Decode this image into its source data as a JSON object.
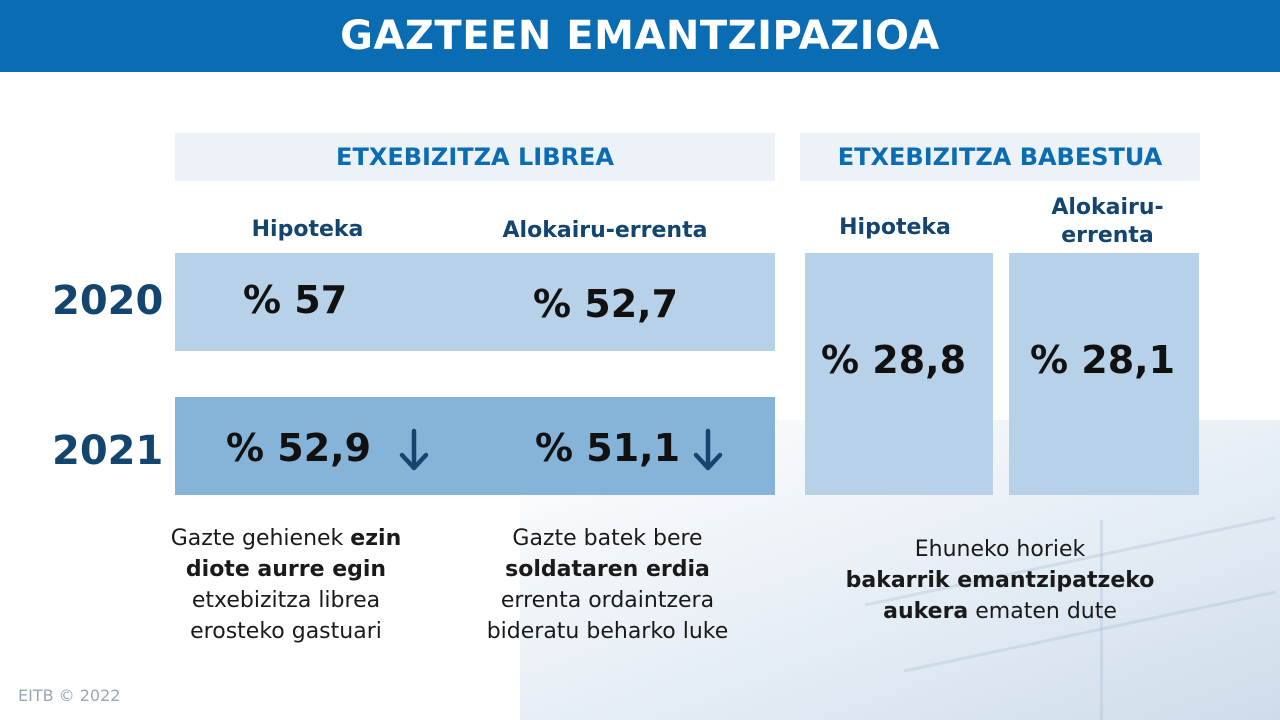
{
  "title": "GAZTEEN EMANTZIPAZIOA",
  "sections": {
    "libre": "ETXEBIZITZA LIBREA",
    "babestua": "ETXEBIZITZA BABESTUA"
  },
  "columns": {
    "libre_hipoteka": "Hipoteka",
    "libre_alokairu": "Alokairu-errenta",
    "babestua_hipoteka": "Hipoteka",
    "babestua_alokairu_1": "Alokairu-",
    "babestua_alokairu_2": "errenta"
  },
  "years": {
    "y2020": "2020",
    "y2021": "2021"
  },
  "values": {
    "libre_hipoteka_2020": "% 57",
    "libre_alokairu_2020": "% 52,7",
    "libre_hipoteka_2021": "% 52,9",
    "libre_alokairu_2021": "% 51,1",
    "babestua_hipoteka": "% 28,8",
    "babestua_alokairu": "% 28,1"
  },
  "trend_icons": [
    "arrow-down-icon",
    "arrow-down-icon"
  ],
  "notes": {
    "hipoteka": {
      "p1": "Gazte gehienek ",
      "b1": "ezin",
      "b2": "diote aurre egin",
      "l3": "etxebizitza librea",
      "l4": "erosteko gastuari"
    },
    "alokairu": {
      "l1": "Gazte batek bere",
      "b1": "soldataren erdia",
      "l3": "errenta ordaintzera",
      "l4": "bideratu beharko luke"
    },
    "babestua": {
      "l1": "Ehuneko horiek",
      "b1": "bakarrik emantzipatzeko",
      "b2": "aukera",
      "p2": " ematen dute"
    }
  },
  "footer": "EITB © 2022",
  "colors": {
    "header": "#0a6cb3",
    "dark_text": "#14456e",
    "band_light": "#b6d1e8",
    "band_dark": "#86b4d8",
    "section_bg": "#edf2f8"
  }
}
